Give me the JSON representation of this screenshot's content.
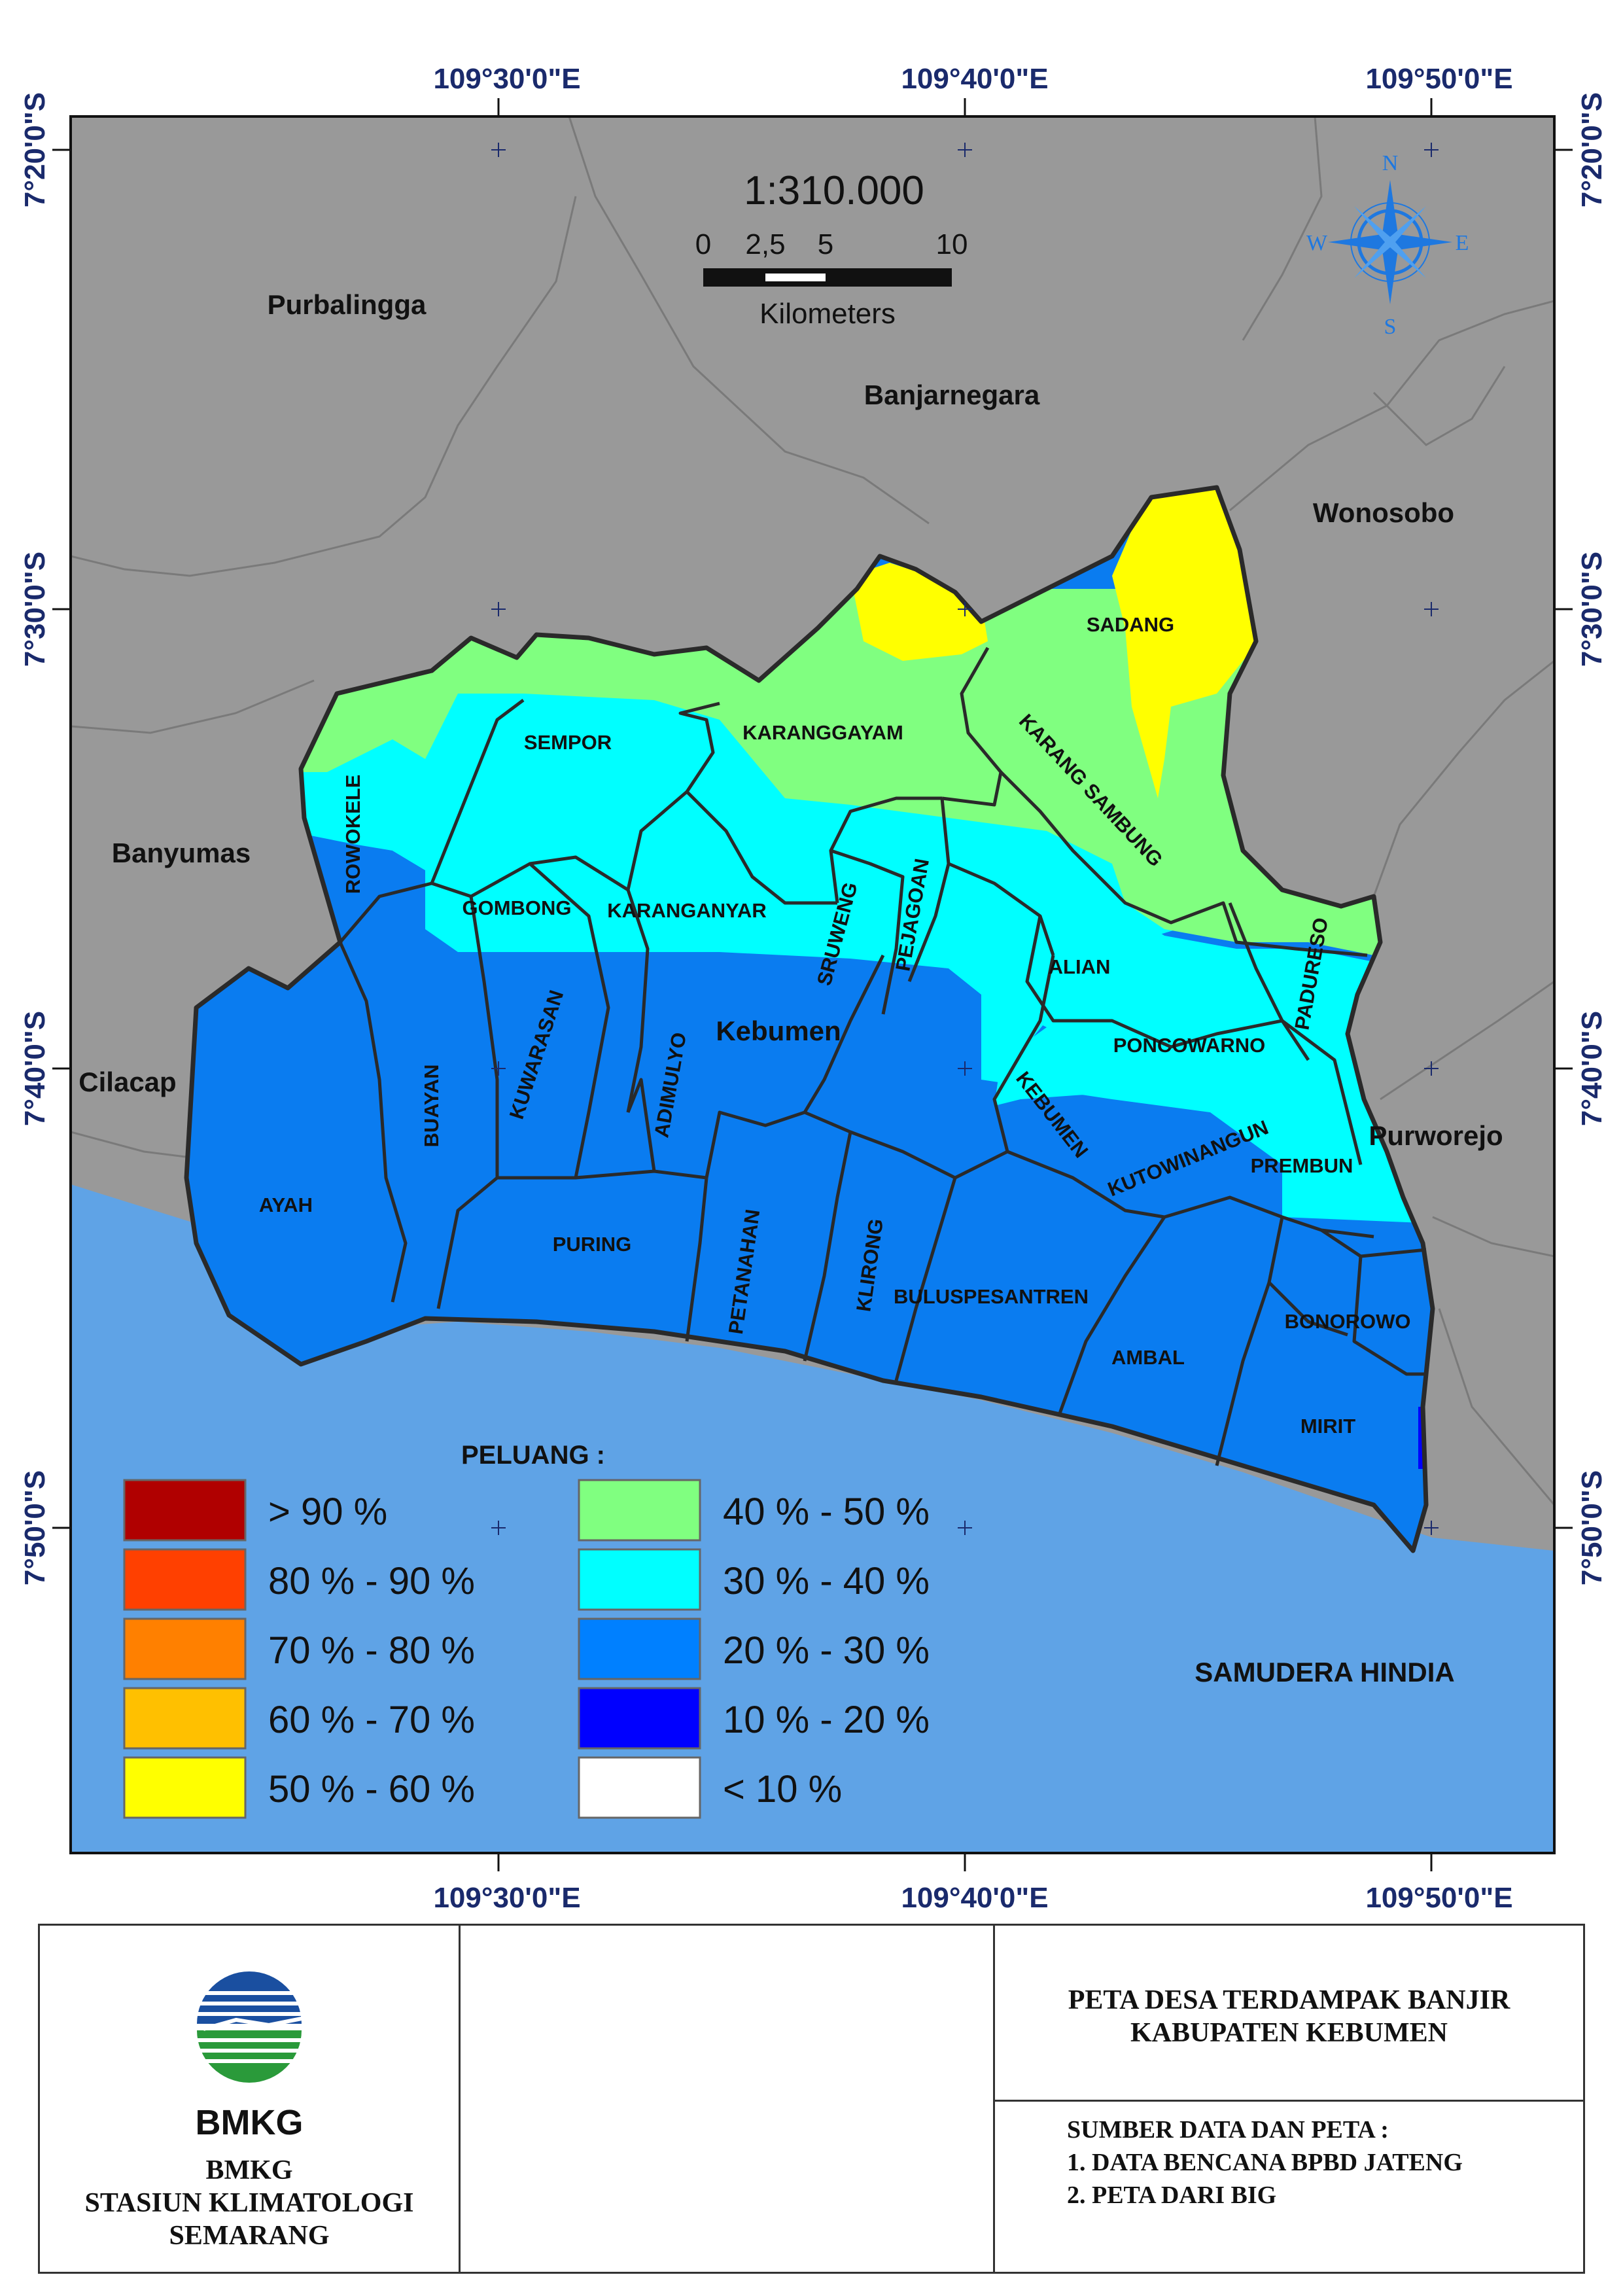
{
  "coordinates": {
    "top": [
      "109°30'0\"E",
      "109°40'0\"E",
      "109°50'0\"E"
    ],
    "bottom": [
      "109°30'0\"E",
      "109°40'0\"E",
      "109°50'0\"E"
    ],
    "left": [
      "7°20'0\"S",
      "7°30'0\"S",
      "7°40'0\"S",
      "7°50'0\"S"
    ],
    "right": [
      "7°20'0\"S",
      "7°30'0\"S",
      "7°40'0\"S",
      "7°50'0\"S"
    ]
  },
  "scale": {
    "ratio": "1:310.000",
    "ticks": [
      "0",
      "2,5",
      "5",
      "10"
    ],
    "unit": "Kilometers"
  },
  "compass": {
    "n": "N",
    "s": "S",
    "e": "E",
    "w": "W"
  },
  "regions": {
    "purbalingga": "Purbalingga",
    "banjarnegara": "Banjarnegara",
    "wonosobo": "Wonosobo",
    "banyumas": "Banyumas",
    "cilacap": "Cilacap",
    "purworejo": "Purworejo",
    "kebumen": "Kebumen",
    "ocean": "SAMUDERA HINDIA"
  },
  "districts": {
    "sadang": "SADANG",
    "sempor": "SEMPOR",
    "karanggayam": "KARANGGAYAM",
    "karang_sambung": "KARANG SAMBUNG",
    "rowokele": "ROWOKELE",
    "gombong": "GOMBONG",
    "karanganyar": "KARANGANYAR",
    "sruweng": "SRUWENG",
    "pejagoan": "PEJAGOAN",
    "alian": "ALIAN",
    "padureso": "PADURESO",
    "poncowarno": "PONCOWARNO",
    "buayan": "BUAYAN",
    "kuwarasan": "KUWARASAN",
    "adimulyo": "ADIMULYO",
    "kebumen": "KEBUMEN",
    "kutowinangun": "KUTOWINANGUN",
    "prembun": "PREMBUN",
    "ayah": "AYAH",
    "puring": "PURING",
    "petanahan": "PETANAHAN",
    "klirong": "KLIRONG",
    "buluspesantren": "BULUSPESANTREN",
    "ambal": "AMBAL",
    "bonorowo": "BONOROWO",
    "mirit": "MIRIT"
  },
  "legend": {
    "title": "PELUANG :",
    "items": [
      {
        "label": "> 90 %",
        "color": "#b00000"
      },
      {
        "label": "80 % - 90 %",
        "color": "#ff4000"
      },
      {
        "label": "70 % - 80 %",
        "color": "#ff8000"
      },
      {
        "label": "60 % - 70 %",
        "color": "#ffc000"
      },
      {
        "label": "50 % - 60 %",
        "color": "#ffff00"
      },
      {
        "label": "40 % - 50 %",
        "color": "#80ff80"
      },
      {
        "label": "30 % - 40 %",
        "color": "#00ffff"
      },
      {
        "label": "20 % - 30 %",
        "color": "#0080ff"
      },
      {
        "label": "10 % - 20 %",
        "color": "#0000ff"
      },
      {
        "label": "< 10 %",
        "color": "#ffffff"
      }
    ]
  },
  "colors": {
    "land": "#999999",
    "ocean": "#5fa3e6",
    "border": "#2a2a2a"
  },
  "footer": {
    "logo_text": "BMKG",
    "org_lines": [
      "BMKG",
      "STASIUN KLIMATOLOGI",
      "SEMARANG"
    ],
    "title_lines": [
      "PETA DESA TERDAMPAK BANJIR",
      "KABUPATEN KEBUMEN"
    ],
    "source_title": "SUMBER DATA DAN PETA :",
    "source_items": [
      "1. DATA BENCANA BPBD JATENG",
      "2. PETA DARI BIG"
    ]
  }
}
